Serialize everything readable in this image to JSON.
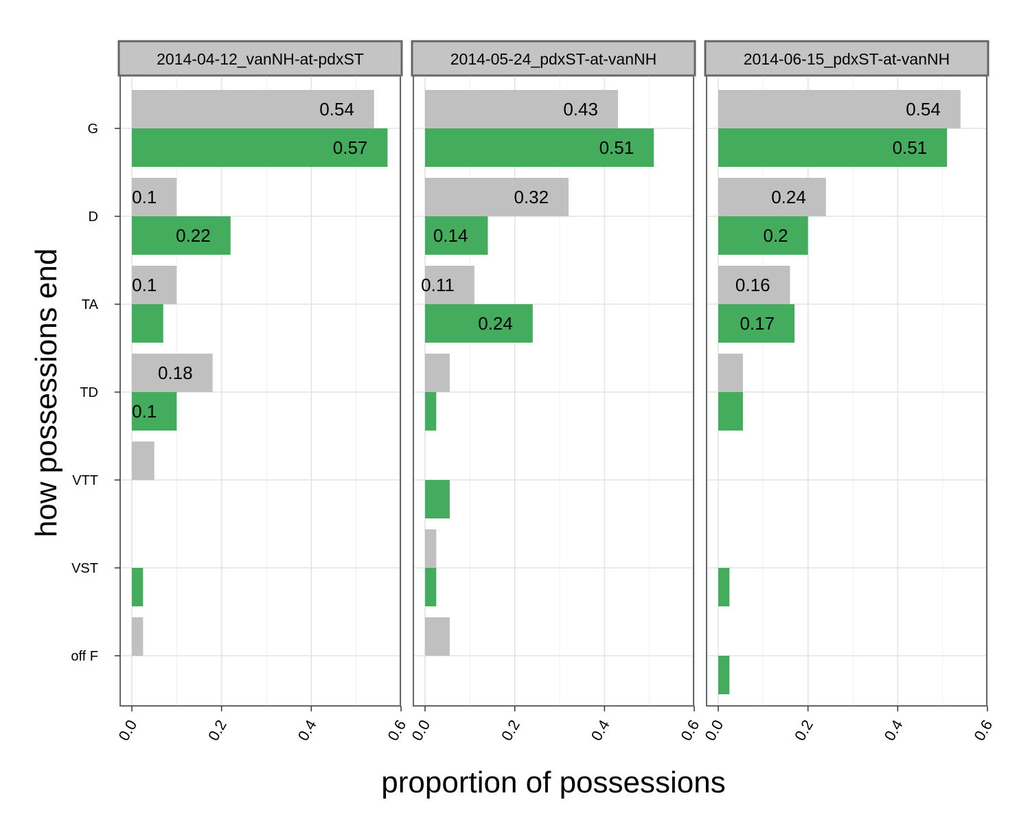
{
  "chart_data": {
    "type": "bar",
    "orientation": "horizontal",
    "xlabel": "proportion of possessions",
    "ylabel": "how possessions end",
    "xlim": [
      0,
      0.6
    ],
    "xticks": [
      "0.0",
      "0.2",
      "0.4",
      "0.6"
    ],
    "categories": [
      "G",
      "D",
      "TA",
      "TD",
      "VTT",
      "VST",
      "off F"
    ],
    "colors": {
      "grey": "#c0c0c0",
      "green": "#43ad5d"
    },
    "grid": true,
    "facets": [
      {
        "title": "2014-04-12_vanNH-at-pdxST",
        "series": [
          {
            "color": "grey",
            "values": [
              0.54,
              0.1,
              0.1,
              0.18,
              0.05,
              null,
              0.025
            ],
            "labels": [
              "0.54",
              "0.1",
              "0.1",
              "0.18",
              "",
              "",
              ""
            ]
          },
          {
            "color": "green",
            "values": [
              0.57,
              0.22,
              0.07,
              0.1,
              null,
              0.025,
              null
            ],
            "labels": [
              "0.57",
              "0.22",
              "",
              "0.1",
              "",
              "",
              ""
            ]
          }
        ]
      },
      {
        "title": "2014-05-24_pdxST-at-vanNH",
        "series": [
          {
            "color": "grey",
            "values": [
              0.43,
              0.32,
              0.11,
              0.055,
              null,
              0.025,
              0.055
            ],
            "labels": [
              "0.43",
              "0.32",
              "0.11",
              "",
              "",
              "",
              ""
            ]
          },
          {
            "color": "green",
            "values": [
              0.51,
              0.14,
              0.24,
              0.025,
              0.055,
              0.025,
              null
            ],
            "labels": [
              "0.51",
              "0.14",
              "0.24",
              "",
              "",
              "",
              ""
            ]
          }
        ]
      },
      {
        "title": "2014-06-15_pdxST-at-vanNH",
        "series": [
          {
            "color": "grey",
            "values": [
              0.54,
              0.24,
              0.16,
              0.055,
              null,
              null,
              null
            ],
            "labels": [
              "0.54",
              "0.24",
              "0.16",
              "",
              "",
              "",
              ""
            ]
          },
          {
            "color": "green",
            "values": [
              0.51,
              0.2,
              0.17,
              0.055,
              null,
              0.025,
              0.025
            ],
            "labels": [
              "0.51",
              "0.2",
              "0.17",
              "",
              "",
              "",
              ""
            ]
          }
        ]
      }
    ]
  }
}
